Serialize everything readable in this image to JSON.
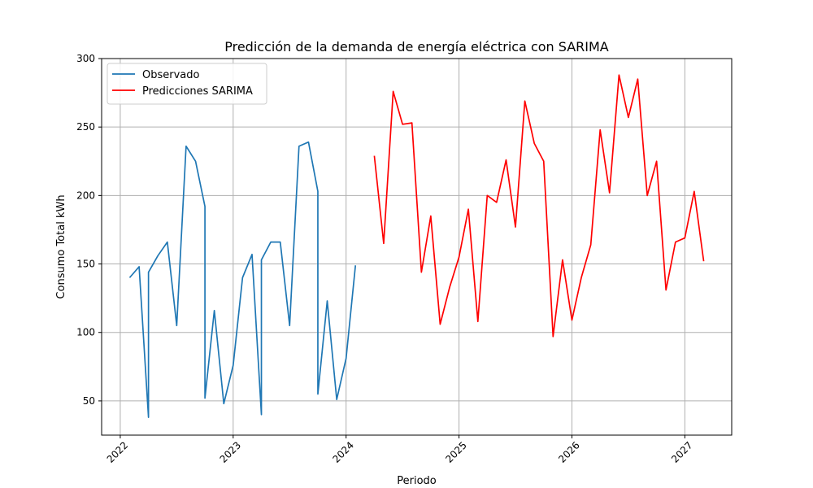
{
  "chart_data": {
    "type": "line",
    "title": "Predicción de la demanda de energía eléctrica con SARIMA",
    "xlabel": "Periodo",
    "ylabel": "Consumo Total kWh",
    "xlim": [
      2021.835,
      2027.415
    ],
    "ylim": [
      25,
      300
    ],
    "yticks": [
      50,
      100,
      150,
      200,
      250,
      300
    ],
    "xticks": [
      2022,
      2023,
      2024,
      2025,
      2026,
      2027
    ],
    "xtick_labels": [
      "2022",
      "2023",
      "2024",
      "2025",
      "2026",
      "2027"
    ],
    "grid": true,
    "legend_position": "top-left",
    "series": [
      {
        "name": "Observado",
        "color": "#1f77b4",
        "points": [
          [
            2022.083,
            140
          ],
          [
            2022.167,
            148
          ],
          [
            2022.25,
            38
          ],
          [
            2022.25,
            144
          ],
          [
            2022.333,
            156
          ],
          [
            2022.417,
            166
          ],
          [
            2022.5,
            105
          ],
          [
            2022.583,
            236
          ],
          [
            2022.667,
            225
          ],
          [
            2022.75,
            192
          ],
          [
            2022.75,
            52
          ],
          [
            2022.833,
            116
          ],
          [
            2022.917,
            48
          ],
          [
            2023.0,
            76
          ],
          [
            2023.083,
            140
          ],
          [
            2023.167,
            157
          ],
          [
            2023.25,
            40
          ],
          [
            2023.25,
            153
          ],
          [
            2023.333,
            166
          ],
          [
            2023.417,
            166
          ],
          [
            2023.5,
            105
          ],
          [
            2023.583,
            236
          ],
          [
            2023.667,
            239
          ],
          [
            2023.75,
            203
          ],
          [
            2023.75,
            55
          ],
          [
            2023.833,
            123
          ],
          [
            2023.917,
            51
          ],
          [
            2024.0,
            81
          ],
          [
            2024.083,
            149
          ]
        ]
      },
      {
        "name": "Predicciones SARIMA",
        "color": "#ff0000",
        "points": [
          [
            2024.25,
            229
          ],
          [
            2024.333,
            165
          ],
          [
            2024.417,
            276
          ],
          [
            2024.5,
            252
          ],
          [
            2024.583,
            253
          ],
          [
            2024.667,
            144
          ],
          [
            2024.75,
            185
          ],
          [
            2024.833,
            106
          ],
          [
            2024.917,
            133
          ],
          [
            2025.0,
            155
          ],
          [
            2025.083,
            190
          ],
          [
            2025.167,
            108
          ],
          [
            2025.25,
            200
          ],
          [
            2025.333,
            195
          ],
          [
            2025.417,
            226
          ],
          [
            2025.5,
            177
          ],
          [
            2025.583,
            269
          ],
          [
            2025.667,
            238
          ],
          [
            2025.75,
            225
          ],
          [
            2025.833,
            97
          ],
          [
            2025.917,
            153
          ],
          [
            2026.0,
            109
          ],
          [
            2026.083,
            140
          ],
          [
            2026.167,
            164
          ],
          [
            2026.25,
            248
          ],
          [
            2026.333,
            202
          ],
          [
            2026.417,
            288
          ],
          [
            2026.5,
            257
          ],
          [
            2026.583,
            285
          ],
          [
            2026.667,
            200
          ],
          [
            2026.75,
            225
          ],
          [
            2026.833,
            131
          ],
          [
            2026.917,
            166
          ],
          [
            2027.0,
            169
          ],
          [
            2027.083,
            203
          ],
          [
            2027.167,
            152
          ]
        ]
      }
    ]
  }
}
